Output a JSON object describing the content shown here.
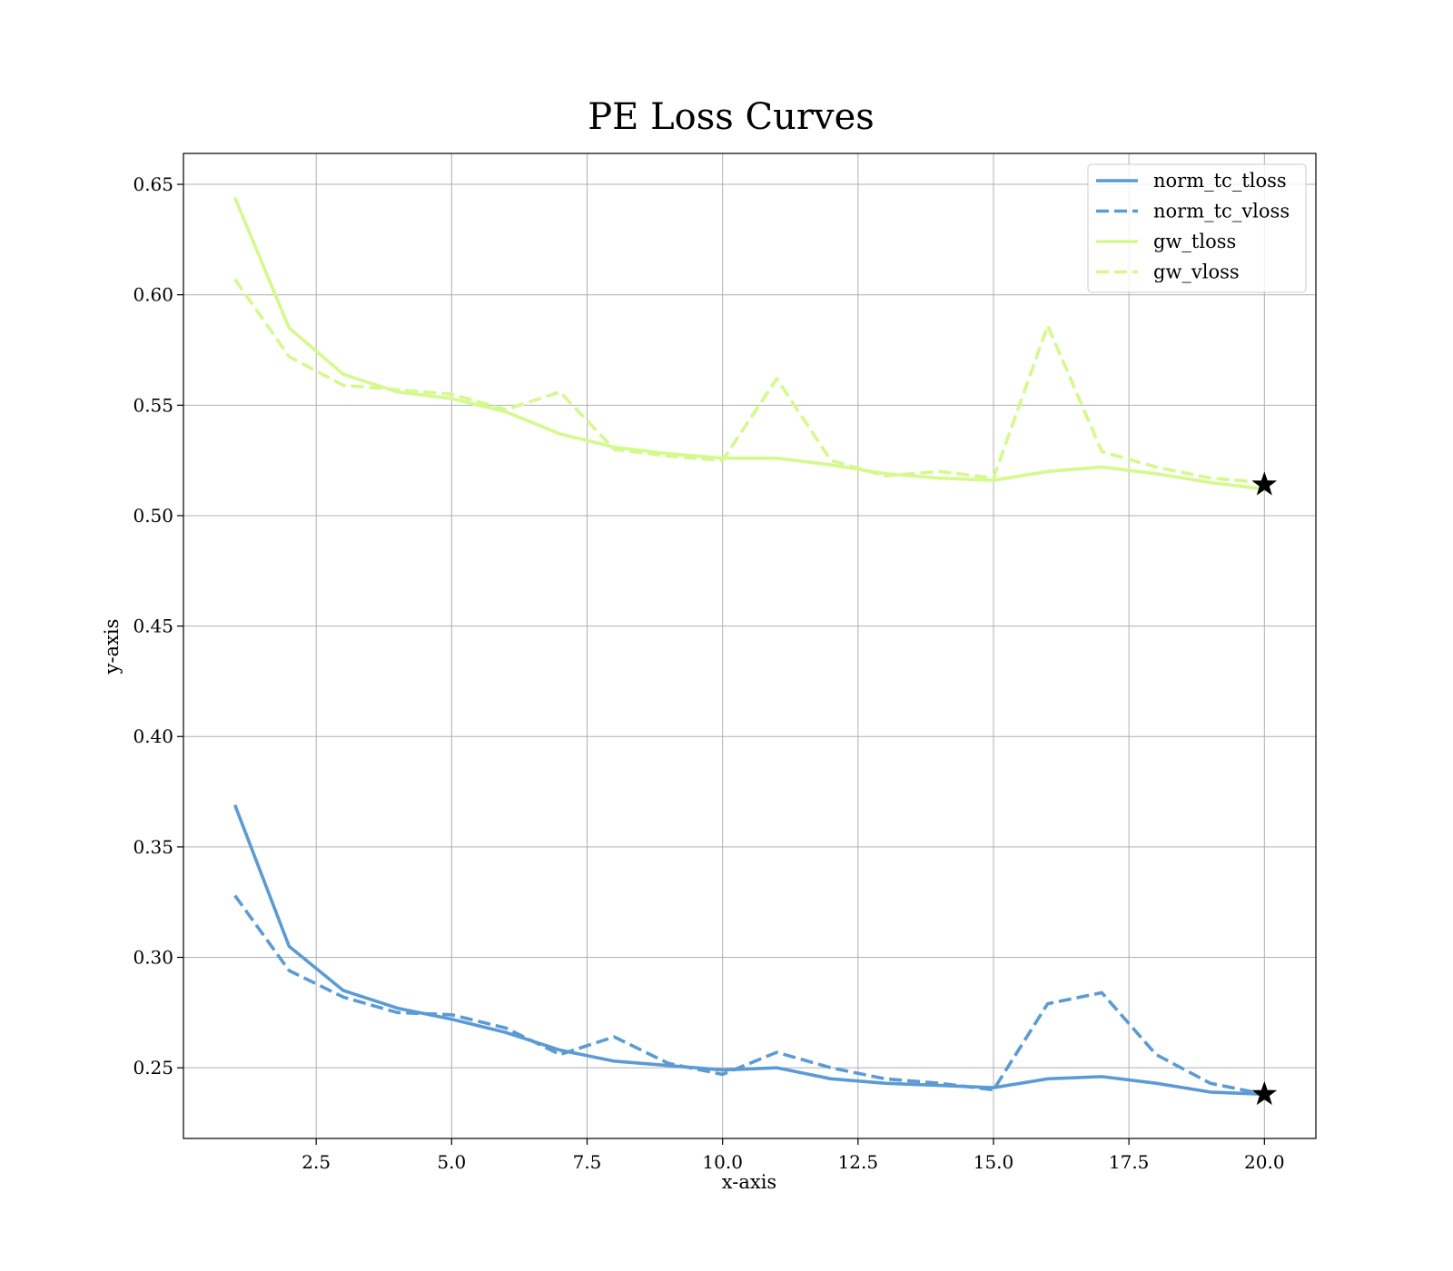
{
  "chart_data": {
    "type": "line",
    "title": "PE Loss Curves",
    "xlabel": "x-axis",
    "ylabel": "y-axis",
    "xlim": [
      0.05,
      20.95
    ],
    "ylim": [
      0.218,
      0.664
    ],
    "xticks": [
      2.5,
      5.0,
      7.5,
      10.0,
      12.5,
      15.0,
      17.5,
      20.0
    ],
    "xtick_labels": [
      "2.5",
      "5.0",
      "7.5",
      "10.0",
      "12.5",
      "15.0",
      "17.5",
      "20.0"
    ],
    "yticks": [
      0.25,
      0.3,
      0.35,
      0.4,
      0.45,
      0.5,
      0.55,
      0.6,
      0.65
    ],
    "ytick_labels": [
      "0.25",
      "0.30",
      "0.35",
      "0.40",
      "0.45",
      "0.50",
      "0.55",
      "0.60",
      "0.65"
    ],
    "grid": true,
    "legend_position": "top-right",
    "x": [
      1,
      2,
      3,
      4,
      5,
      6,
      7,
      8,
      9,
      10,
      11,
      12,
      13,
      14,
      15,
      16,
      17,
      18,
      19,
      20
    ],
    "series": [
      {
        "name": "norm_tc_tloss",
        "color": "#5b9bd5",
        "style": "solid",
        "values": [
          0.369,
          0.305,
          0.285,
          0.277,
          0.272,
          0.266,
          0.258,
          0.253,
          0.251,
          0.249,
          0.25,
          0.245,
          0.243,
          0.242,
          0.241,
          0.245,
          0.246,
          0.243,
          0.239,
          0.238
        ]
      },
      {
        "name": "norm_tc_vloss",
        "color": "#5b9bd5",
        "style": "dashed",
        "values": [
          0.328,
          0.294,
          0.282,
          0.275,
          0.274,
          0.268,
          0.256,
          0.264,
          0.252,
          0.247,
          0.257,
          0.25,
          0.245,
          0.243,
          0.24,
          0.279,
          0.284,
          0.256,
          0.243,
          0.238
        ]
      },
      {
        "name": "gw_tloss",
        "color": "#d4f98d",
        "style": "solid",
        "values": [
          0.644,
          0.585,
          0.564,
          0.556,
          0.553,
          0.547,
          0.537,
          0.531,
          0.528,
          0.526,
          0.526,
          0.523,
          0.519,
          0.517,
          0.516,
          0.52,
          0.522,
          0.519,
          0.515,
          0.512
        ]
      },
      {
        "name": "gw_vloss",
        "color": "#d4f98d",
        "style": "dashed",
        "values": [
          0.607,
          0.572,
          0.559,
          0.557,
          0.555,
          0.548,
          0.556,
          0.53,
          0.527,
          0.525,
          0.562,
          0.525,
          0.518,
          0.52,
          0.517,
          0.586,
          0.529,
          0.522,
          0.517,
          0.515
        ]
      }
    ],
    "markers": [
      {
        "x": 20,
        "y": 0.514,
        "symbol": "star",
        "color": "#000000"
      },
      {
        "x": 20,
        "y": 0.238,
        "symbol": "star",
        "color": "#000000"
      }
    ]
  }
}
